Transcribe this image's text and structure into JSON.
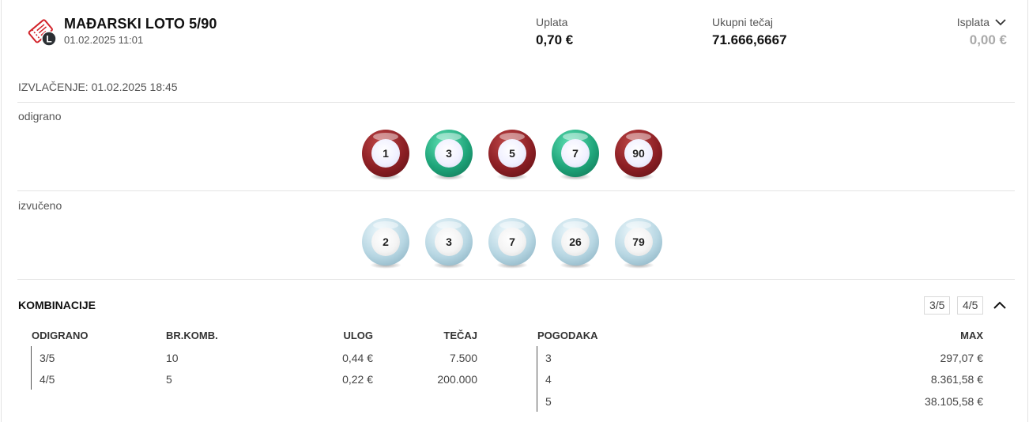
{
  "ticket": {
    "title": "MAĐARSKI LOTO 5/90",
    "datetime": "01.02.2025 11:01",
    "badge": "L",
    "icon": "lottery-ticket-icon"
  },
  "summary": {
    "uplata_label": "Uplata",
    "uplata_value": "0,70 €",
    "tecaj_label": "Ukupni tečaj",
    "tecaj_value": "71.666,6667",
    "isplata_label": "Isplata",
    "isplata_value": "0,00 €"
  },
  "draw": {
    "label": "IZVLAČENJE: 01.02.2025 18:45"
  },
  "played": {
    "label": "odigrano",
    "balls": [
      {
        "n": "1",
        "color": "red"
      },
      {
        "n": "3",
        "color": "green"
      },
      {
        "n": "5",
        "color": "red"
      },
      {
        "n": "7",
        "color": "green"
      },
      {
        "n": "90",
        "color": "red"
      }
    ]
  },
  "drawn": {
    "label": "izvučeno",
    "balls": [
      {
        "n": "2",
        "color": "blue"
      },
      {
        "n": "3",
        "color": "blue"
      },
      {
        "n": "7",
        "color": "blue"
      },
      {
        "n": "26",
        "color": "blue"
      },
      {
        "n": "79",
        "color": "blue"
      }
    ]
  },
  "combinations": {
    "title": "KOMBINACIJE",
    "chips": [
      "3/5",
      "4/5"
    ],
    "headers": {
      "odigrano": "ODIGRANO",
      "brkomb": "BR.KOMB.",
      "ulog": "ULOG",
      "tecaj": "TEČAJ",
      "pogodaka": "POGODAKA",
      "max": "MAX"
    },
    "rows": [
      {
        "odigrano": "3/5",
        "brkomb": "10",
        "ulog": "0,44 €",
        "tecaj": "7.500"
      },
      {
        "odigrano": "4/5",
        "brkomb": "5",
        "ulog": "0,22 €",
        "tecaj": "200.000"
      }
    ],
    "hits": [
      {
        "pogodaka": "3",
        "max": "297,07 €"
      },
      {
        "pogodaka": "4",
        "max": "8.361,58 €"
      },
      {
        "pogodaka": "5",
        "max": "38.105,58 €"
      }
    ]
  }
}
